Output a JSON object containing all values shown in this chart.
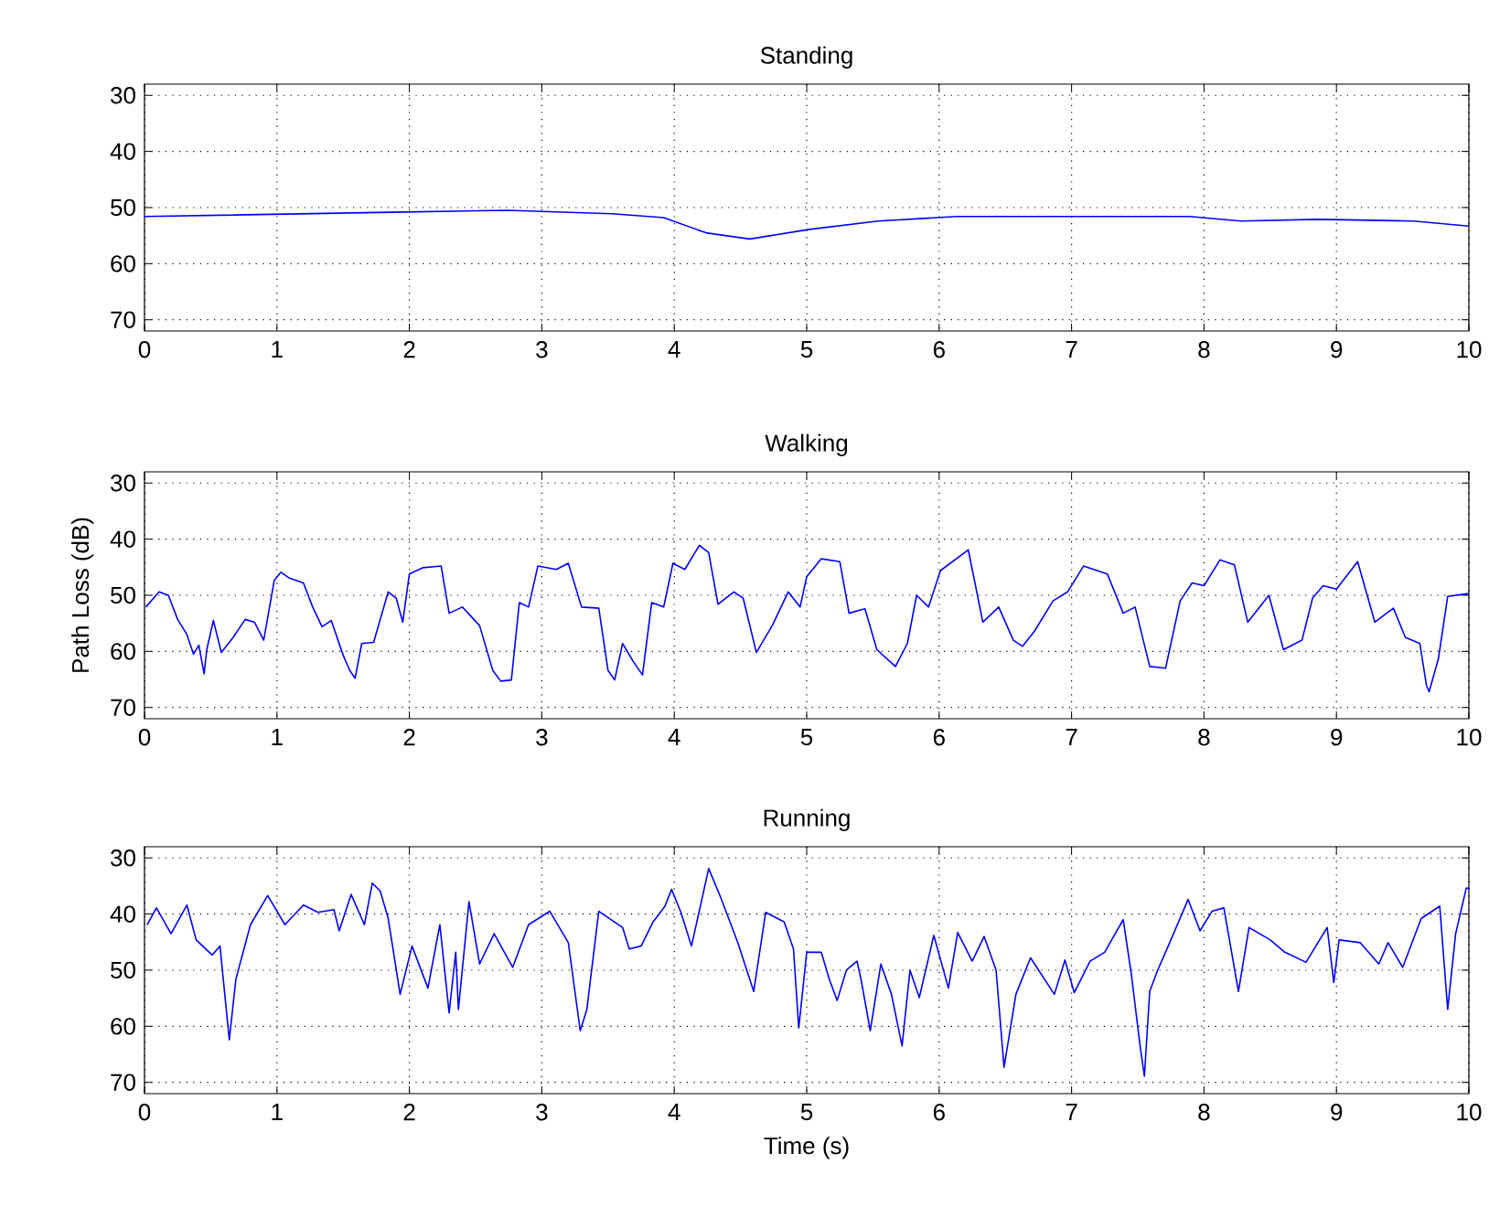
{
  "chart_data": [
    {
      "type": "line",
      "title": "Standing",
      "color": "#0000ff",
      "grid": true,
      "marker": "none",
      "line_style": "solid",
      "xlim": [
        0,
        10
      ],
      "ylim": [
        72,
        28
      ],
      "xticks": [
        0,
        1,
        2,
        3,
        4,
        5,
        6,
        7,
        8,
        9,
        10
      ],
      "yticks": [
        30,
        40,
        50,
        60,
        70
      ],
      "x": [
        0,
        1.96,
        2.74,
        3.53,
        3.92,
        4.24,
        4.57,
        5.02,
        5.54,
        6.13,
        7.89,
        8.28,
        8.86,
        9.58,
        10
      ],
      "values": [
        51.6,
        50.8,
        50.5,
        51.1,
        51.8,
        54.5,
        55.6,
        53.9,
        52.4,
        51.6,
        51.6,
        52.4,
        52.1,
        52.4,
        53.3
      ]
    },
    {
      "type": "line",
      "title": "Walking",
      "ylabel": "Path Loss (dB)",
      "color": "#0000ff",
      "grid": true,
      "marker": "none",
      "line_style": "solid",
      "xlim": [
        0,
        10
      ],
      "ylim": [
        72,
        28
      ],
      "xticks": [
        0,
        1,
        2,
        3,
        4,
        5,
        6,
        7,
        8,
        9,
        10
      ],
      "yticks": [
        30,
        40,
        50,
        60,
        70
      ],
      "x": [
        0.01,
        0.11,
        0.18,
        0.25,
        0.32,
        0.37,
        0.41,
        0.45,
        0.47,
        0.52,
        0.58,
        0.67,
        0.76,
        0.83,
        0.9,
        0.98,
        1.03,
        1.09,
        1.2,
        1.27,
        1.34,
        1.41,
        1.5,
        1.55,
        1.59,
        1.64,
        1.73,
        1.84,
        1.9,
        1.95,
        2.0,
        2.1,
        2.24,
        2.3,
        2.4,
        2.53,
        2.63,
        2.69,
        2.77,
        2.83,
        2.9,
        2.97,
        3.11,
        3.2,
        3.3,
        3.43,
        3.5,
        3.55,
        3.61,
        3.69,
        3.76,
        3.83,
        3.92,
        3.99,
        4.08,
        4.19,
        4.26,
        4.33,
        4.45,
        4.52,
        4.62,
        4.74,
        4.86,
        4.95,
        5.0,
        5.11,
        5.25,
        5.32,
        5.44,
        5.53,
        5.67,
        5.76,
        5.83,
        5.92,
        6.01,
        6.22,
        6.33,
        6.45,
        6.56,
        6.63,
        6.72,
        6.86,
        6.97,
        7.09,
        7.27,
        7.39,
        7.48,
        7.59,
        7.71,
        7.82,
        7.91,
        8.0,
        8.12,
        8.23,
        8.33,
        8.49,
        8.6,
        8.74,
        8.82,
        8.9,
        9.0,
        9.16,
        9.29,
        9.43,
        9.52,
        9.63,
        9.68,
        9.7,
        9.77,
        9.84,
        10.0
      ],
      "values": [
        52.1,
        49.4,
        50,
        54.3,
        57,
        60.5,
        58.9,
        64,
        59.7,
        54.5,
        60.2,
        57.5,
        54.3,
        54.8,
        58,
        47.3,
        45.9,
        46.9,
        47.8,
        52.1,
        55.6,
        54.5,
        60.7,
        63.4,
        64.8,
        58.6,
        58.4,
        49.4,
        50.5,
        54.8,
        46.2,
        45.1,
        44.8,
        53.2,
        52.1,
        55.4,
        63.4,
        65.3,
        65.1,
        51.3,
        52.1,
        44.8,
        45.4,
        44.3,
        52.1,
        52.3,
        63.4,
        65.1,
        58.6,
        61.8,
        64.2,
        51.3,
        52.1,
        44.3,
        45.4,
        41.1,
        42.4,
        51.6,
        49.4,
        50.5,
        60.2,
        55.4,
        49.4,
        52.1,
        46.7,
        43.5,
        44,
        53.2,
        52.4,
        59.7,
        62.7,
        58.6,
        50,
        52.1,
        45.6,
        41.9,
        54.8,
        52.1,
        58,
        59.1,
        56.4,
        51,
        49.4,
        44.8,
        46.2,
        53.2,
        52.1,
        62.7,
        63,
        51,
        47.8,
        48.3,
        43.7,
        44.6,
        54.8,
        50,
        59.7,
        58,
        50.5,
        48.3,
        48.9,
        44,
        54.8,
        52.3,
        57.5,
        58.6,
        66.1,
        67.2,
        61.3,
        50.2,
        49.7
      ]
    },
    {
      "type": "line",
      "title": "Running",
      "xlabel": "Time (s)",
      "color": "#0000ff",
      "grid": true,
      "marker": "none",
      "line_style": "solid",
      "xlim": [
        0,
        10
      ],
      "ylim": [
        72,
        28
      ],
      "xticks": [
        0,
        1,
        2,
        3,
        4,
        5,
        6,
        7,
        8,
        9,
        10
      ],
      "yticks": [
        30,
        40,
        50,
        60,
        70
      ],
      "x": [
        0.02,
        0.09,
        0.2,
        0.32,
        0.39,
        0.51,
        0.57,
        0.64,
        0.69,
        0.8,
        0.93,
        1.06,
        1.2,
        1.31,
        1.43,
        1.47,
        1.56,
        1.66,
        1.72,
        1.78,
        1.84,
        1.93,
        2.02,
        2.14,
        2.23,
        2.3,
        2.35,
        2.37,
        2.45,
        2.53,
        2.64,
        2.78,
        2.9,
        3.06,
        3.2,
        3.29,
        3.34,
        3.43,
        3.61,
        3.66,
        3.75,
        3.84,
        3.93,
        3.98,
        4.05,
        4.13,
        4.26,
        4.35,
        4.48,
        4.6,
        4.69,
        4.83,
        4.9,
        4.94,
        5.0,
        5.11,
        5.17,
        5.23,
        5.3,
        5.38,
        5.41,
        5.48,
        5.56,
        5.64,
        5.72,
        5.78,
        5.85,
        5.96,
        6.07,
        6.14,
        6.25,
        6.34,
        6.43,
        6.49,
        6.58,
        6.69,
        6.87,
        6.95,
        7.02,
        7.14,
        7.25,
        7.39,
        7.45,
        7.52,
        7.55,
        7.59,
        7.65,
        7.73,
        7.88,
        7.97,
        8.06,
        8.15,
        8.26,
        8.34,
        8.5,
        8.61,
        8.77,
        8.93,
        8.98,
        9.02,
        9.18,
        9.32,
        9.39,
        9.5,
        9.64,
        9.78,
        9.84,
        9.9,
        9.98,
        10.0
      ],
      "values": [
        41.9,
        38.9,
        43.5,
        38.4,
        44.6,
        47.3,
        45.7,
        62.4,
        51.6,
        41.9,
        36.7,
        41.9,
        38.4,
        39.7,
        39.2,
        43,
        36.5,
        41.9,
        34.5,
        35.9,
        40.8,
        54.3,
        45.7,
        53.2,
        41.9,
        57.6,
        46.8,
        57,
        37.8,
        48.9,
        43.5,
        49.5,
        41.9,
        39.5,
        45.1,
        60.8,
        57,
        39.5,
        42.4,
        46.2,
        45.7,
        41.4,
        38.6,
        35.6,
        39.7,
        45.7,
        31.9,
        37,
        45.1,
        53.8,
        39.7,
        41.4,
        46.2,
        60.3,
        46.8,
        46.8,
        51.6,
        55.4,
        50,
        48.4,
        51.6,
        60.8,
        48.9,
        54.3,
        63.5,
        50,
        54.9,
        43.8,
        53.2,
        43.3,
        48.4,
        44,
        50,
        67.3,
        54.3,
        47.8,
        54.3,
        48.2,
        54,
        48.4,
        46.8,
        41,
        50.5,
        64,
        68.9,
        53.8,
        50,
        45.7,
        37.4,
        43,
        39.5,
        38.9,
        53.8,
        42.4,
        44.6,
        46.8,
        48.6,
        42.4,
        52.2,
        44.6,
        45.1,
        48.9,
        45.1,
        49.5,
        40.8,
        38.6,
        57,
        43.5,
        35.4,
        35.4
      ]
    }
  ]
}
